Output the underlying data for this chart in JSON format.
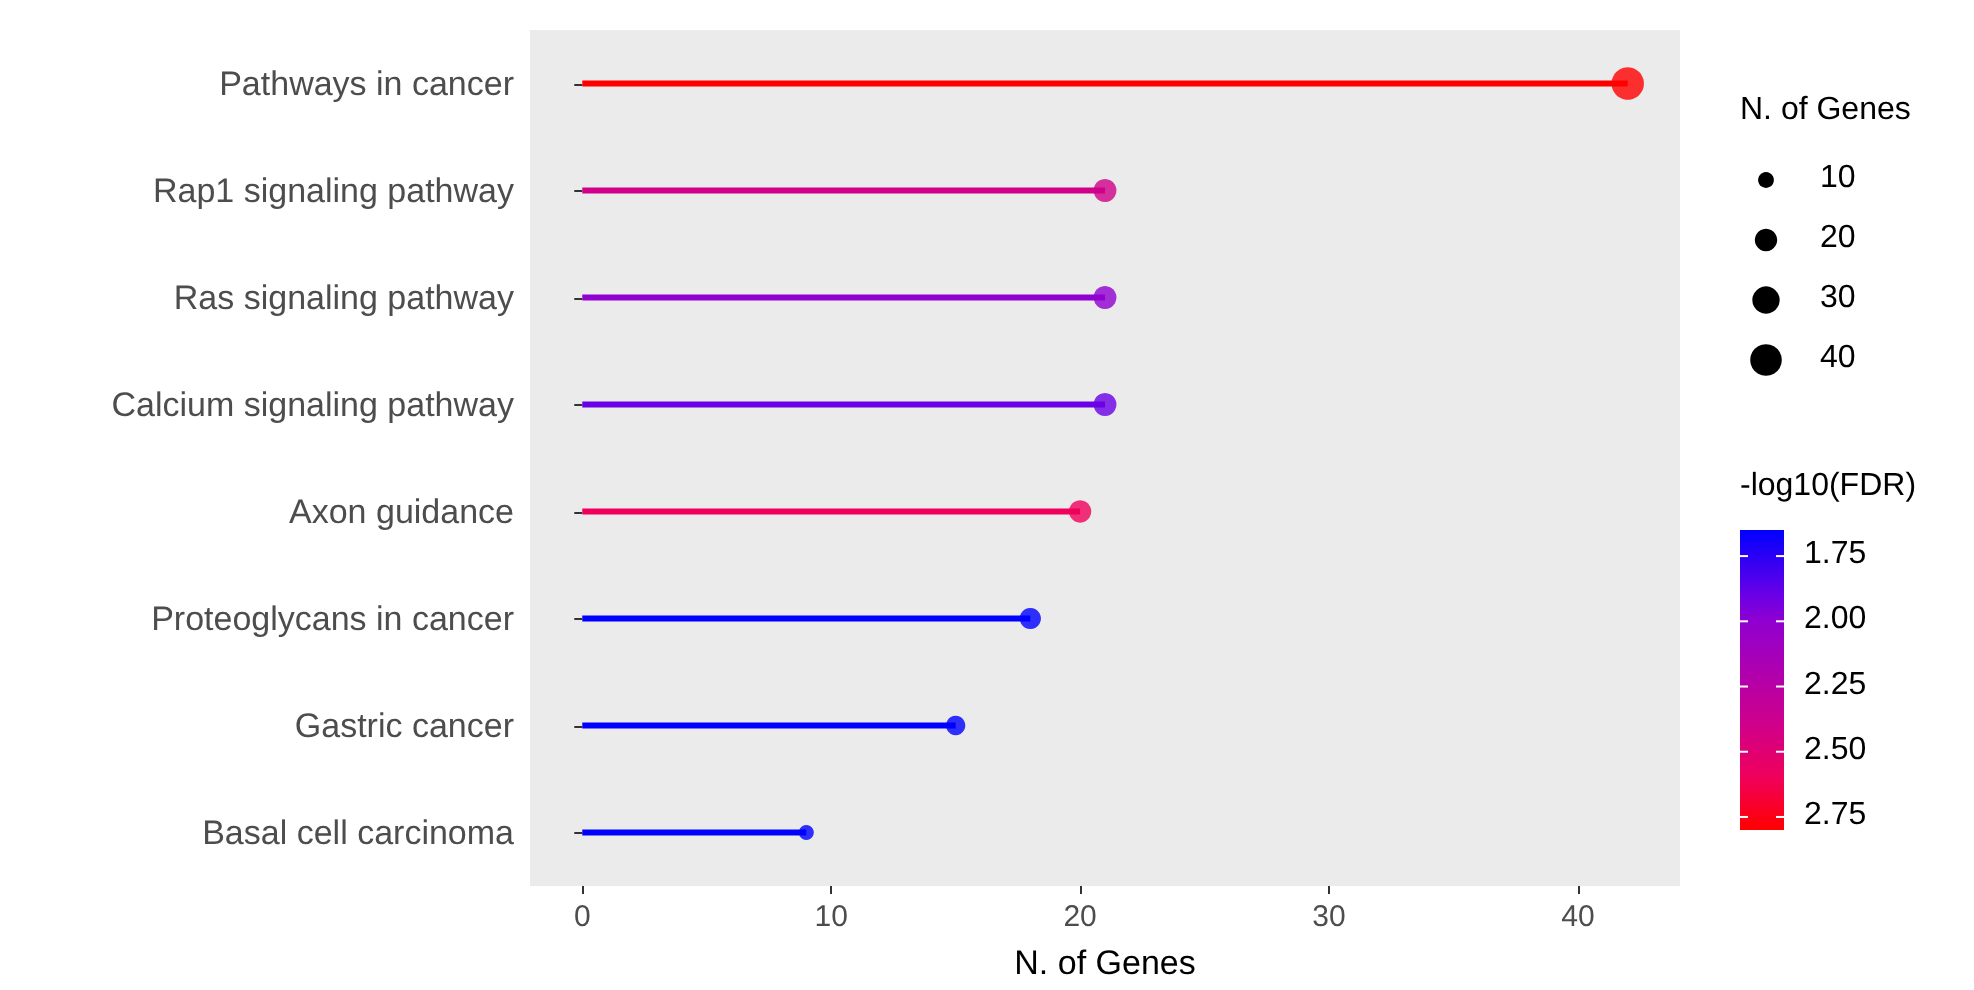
{
  "chart_data": {
    "type": "lollipop",
    "orientation": "horizontal",
    "xlabel": "N. of Genes",
    "categories": [
      "Pathways in cancer",
      "Rap1 signaling pathway",
      "Ras signaling pathway",
      "Calcium signaling pathway",
      "Axon guidance",
      "Proteoglycans in cancer",
      "Gastric cancer",
      "Basal cell carcinoma"
    ],
    "values": [
      42,
      21,
      21,
      21,
      20,
      18,
      15,
      9
    ],
    "sizes": [
      42,
      21,
      21,
      21,
      20,
      18,
      15,
      9
    ],
    "size_legend": [
      10,
      20,
      30,
      40
    ],
    "cvalues": [
      2.8,
      2.4,
      2.0,
      1.9,
      2.6,
      1.65,
      1.65,
      1.65
    ],
    "colors": [
      "#ff0000",
      "#d0008a",
      "#9000d0",
      "#6a00e6",
      "#f0005a",
      "#0000ff",
      "#0000ff",
      "#0000ff"
    ],
    "clabel": "-log10(FDR)",
    "clim": [
      1.65,
      2.8
    ],
    "cticks": [
      1.75,
      {
        "value": 2,
        "label": "2.00"
      },
      2.25,
      {
        "value": 2.5,
        "label": "2.50"
      },
      2.75
    ],
    "legend_title": "N. of Genes",
    "xlim": [
      -2.1,
      44.1
    ],
    "xticks": [
      0,
      10,
      20,
      30,
      40
    ],
    "grid": false,
    "marker": "circle"
  }
}
